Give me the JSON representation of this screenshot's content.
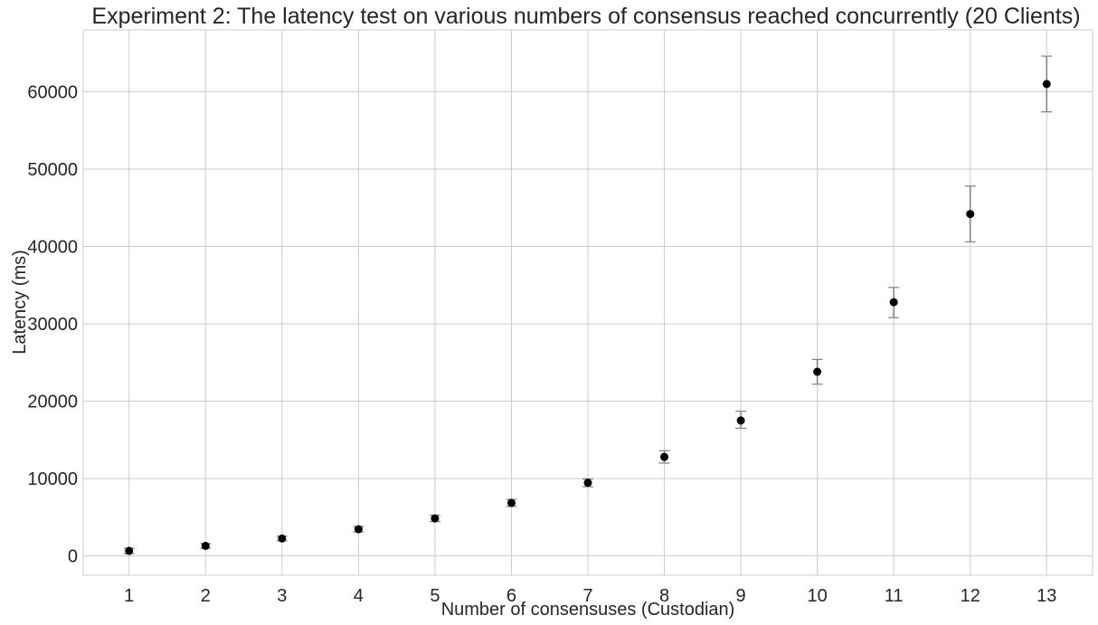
{
  "chart_data": {
    "type": "scatter",
    "title": "Experiment 2: The latency test on various numbers of consensus reached concurrently (20 Clients)",
    "xlabel": "Number of consensuses (Custodian)",
    "ylabel": "Latency (ms)",
    "x": [
      1,
      2,
      3,
      4,
      5,
      6,
      7,
      8,
      9,
      10,
      11,
      12,
      13
    ],
    "y": [
      650,
      1300,
      2250,
      3450,
      4850,
      6850,
      9450,
      12800,
      17500,
      23800,
      32800,
      44200,
      61000
    ],
    "error_low": [
      350,
      300,
      300,
      350,
      400,
      450,
      500,
      800,
      1000,
      1600,
      2000,
      3600,
      3600
    ],
    "error_high": [
      350,
      300,
      300,
      350,
      400,
      450,
      500,
      800,
      1200,
      1600,
      1900,
      3600,
      3600
    ],
    "xticks": [
      "1",
      "2",
      "3",
      "4",
      "5",
      "6",
      "7",
      "8",
      "9",
      "10",
      "11",
      "12",
      "13"
    ],
    "yticks": [
      "0",
      "10000",
      "20000",
      "30000",
      "40000",
      "50000",
      "60000"
    ],
    "xlim": [
      0.4,
      13.6
    ],
    "ylim": [
      -2500,
      68000
    ],
    "grid": true,
    "colors": {
      "point": "#000000",
      "errorbar": "#808080",
      "grid": "#cccccc",
      "frame": "#cccccc",
      "text": "#262626"
    }
  }
}
